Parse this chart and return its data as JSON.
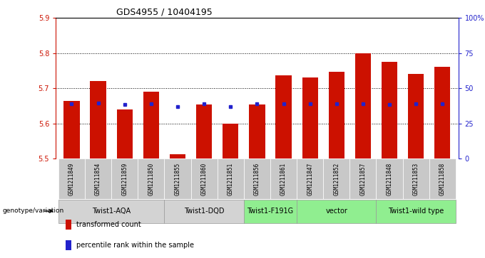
{
  "title": "GDS4955 / 10404195",
  "samples": [
    "GSM1211849",
    "GSM1211854",
    "GSM1211859",
    "GSM1211850",
    "GSM1211855",
    "GSM1211860",
    "GSM1211851",
    "GSM1211856",
    "GSM1211861",
    "GSM1211847",
    "GSM1211852",
    "GSM1211857",
    "GSM1211848",
    "GSM1211853",
    "GSM1211858"
  ],
  "bar_tops": [
    5.665,
    5.72,
    5.64,
    5.69,
    5.513,
    5.655,
    5.6,
    5.655,
    5.737,
    5.73,
    5.748,
    5.8,
    5.775,
    5.742,
    5.762
  ],
  "blue_y": [
    5.657,
    5.658,
    5.655,
    5.657,
    5.648,
    5.656,
    5.649,
    5.657,
    5.657,
    5.656,
    5.657,
    5.657,
    5.655,
    5.656,
    5.657
  ],
  "bar_bottom": 5.5,
  "ylim": [
    5.5,
    5.9
  ],
  "yticks_left": [
    5.5,
    5.6,
    5.7,
    5.8,
    5.9
  ],
  "yticks_right": [
    0,
    25,
    50,
    75,
    100
  ],
  "ytick_labels_right": [
    "0",
    "25",
    "50",
    "75",
    "100%"
  ],
  "groups": [
    {
      "label": "Twist1-AQA",
      "indices": [
        0,
        1,
        2,
        3
      ],
      "color": "#d3d3d3"
    },
    {
      "label": "Twist1-DQD",
      "indices": [
        4,
        5,
        6
      ],
      "color": "#d3d3d3"
    },
    {
      "label": "Twist1-F191G",
      "indices": [
        7,
        8
      ],
      "color": "#90ee90"
    },
    {
      "label": "vector",
      "indices": [
        9,
        10,
        11
      ],
      "color": "#90ee90"
    },
    {
      "label": "Twist1-wild type",
      "indices": [
        12,
        13,
        14
      ],
      "color": "#90ee90"
    }
  ],
  "bar_color": "#cc1100",
  "blue_color": "#2222cc",
  "sample_box_color": "#c8c8c8",
  "title_fontsize": 9,
  "tick_fontsize": 7,
  "sample_fontsize": 5.5,
  "group_fontsize": 7,
  "legend_fontsize": 7,
  "genotype_label": "genotype/variation",
  "legend_red": "transformed count",
  "legend_blue": "percentile rank within the sample",
  "bar_width": 0.6
}
